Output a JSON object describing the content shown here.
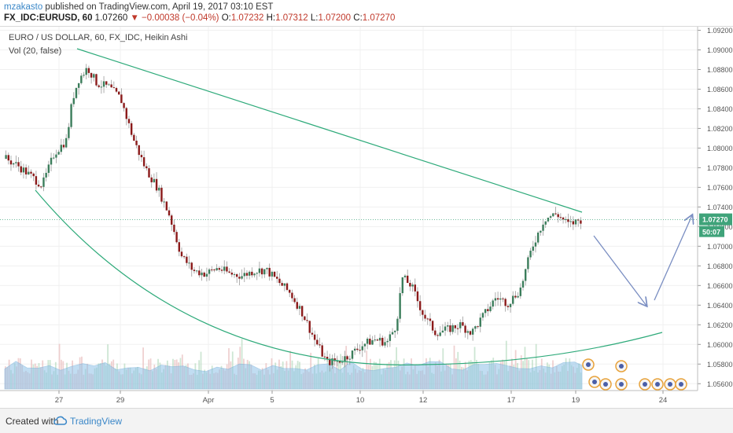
{
  "header": {
    "author": "mzakasto",
    "published_text": "published on TradingView.com, April 19, 2017 03:10 EST",
    "symbol": "FX_IDC:EURUSD, 60",
    "last": "1.07260",
    "change": "▼ −0.00038 (−0.04%)",
    "o_label": "O:",
    "o_value": "1.07232",
    "h_label": "H:",
    "h_value": "1.07312",
    "l_label": "L:",
    "l_value": "1.07200",
    "c_label": "C:",
    "c_value": "1.07270"
  },
  "legend": {
    "title": "EURO / US DOLLAR, 60, FX_IDC, Heikin Ashi",
    "vol": "Vol (20, false)"
  },
  "price_label": {
    "price": "1.07270",
    "countdown": "50:07"
  },
  "footer": {
    "created": "Created with",
    "brand": "TradingView"
  },
  "colors": {
    "up": "#3b7d5b",
    "down": "#8b1a1a",
    "line": "#2eaa7a",
    "arrow": "#7a8ec2",
    "price_label": "#3fa37a",
    "vol_area": "#8fc2e8",
    "vol_bar_up": "#b8dcc0",
    "vol_bar_down": "#e8bcbc"
  },
  "chart_data": {
    "type": "candlestick",
    "style": "Heikin Ashi",
    "timeframe": "60",
    "y_axis_ticks": [
      "1.09200",
      "1.09000",
      "1.08800",
      "1.08600",
      "1.08400",
      "1.08200",
      "1.08000",
      "1.07800",
      "1.07600",
      "1.07400",
      "1.07200",
      "1.07000",
      "1.06800",
      "1.06600",
      "1.06400",
      "1.06200",
      "1.06000",
      "1.05800",
      "1.05600"
    ],
    "x_axis_ticks": [
      "27",
      "29",
      "Apr",
      "5",
      "10",
      "12",
      "17",
      "19",
      "24"
    ],
    "ylim": [
      1.0553,
      1.0922
    ],
    "price_path": [
      {
        "t": 0.0,
        "p": 1.0789
      },
      {
        "t": 0.02,
        "p": 1.0782
      },
      {
        "t": 0.04,
        "p": 1.0772
      },
      {
        "t": 0.06,
        "p": 1.0762
      },
      {
        "t": 0.08,
        "p": 1.0795
      },
      {
        "t": 0.1,
        "p": 1.0808
      },
      {
        "t": 0.11,
        "p": 1.085
      },
      {
        "t": 0.12,
        "p": 1.087
      },
      {
        "t": 0.135,
        "p": 1.0882
      },
      {
        "t": 0.15,
        "p": 1.0866
      },
      {
        "t": 0.17,
        "p": 1.0862
      },
      {
        "t": 0.19,
        "p": 1.085
      },
      {
        "t": 0.21,
        "p": 1.081
      },
      {
        "t": 0.23,
        "p": 1.078
      },
      {
        "t": 0.25,
        "p": 1.076
      },
      {
        "t": 0.27,
        "p": 1.0732
      },
      {
        "t": 0.29,
        "p": 1.069
      },
      {
        "t": 0.31,
        "p": 1.0675
      },
      {
        "t": 0.33,
        "p": 1.0672
      },
      {
        "t": 0.35,
        "p": 1.0678
      },
      {
        "t": 0.37,
        "p": 1.0672
      },
      {
        "t": 0.39,
        "p": 1.067
      },
      {
        "t": 0.41,
        "p": 1.0675
      },
      {
        "t": 0.43,
        "p": 1.0676
      },
      {
        "t": 0.45,
        "p": 1.0664
      },
      {
        "t": 0.47,
        "p": 1.0652
      },
      {
        "t": 0.49,
        "p": 1.0632
      },
      {
        "t": 0.51,
        "p": 1.0605
      },
      {
        "t": 0.53,
        "p": 1.0582
      },
      {
        "t": 0.55,
        "p": 1.0583
      },
      {
        "t": 0.57,
        "p": 1.059
      },
      {
        "t": 0.59,
        "p": 1.06
      },
      {
        "t": 0.61,
        "p": 1.0605
      },
      {
        "t": 0.63,
        "p": 1.0602
      },
      {
        "t": 0.645,
        "p": 1.062
      },
      {
        "t": 0.655,
        "p": 1.0668
      },
      {
        "t": 0.67,
        "p": 1.066
      },
      {
        "t": 0.69,
        "p": 1.063
      },
      {
        "t": 0.71,
        "p": 1.0612
      },
      {
        "t": 0.73,
        "p": 1.0615
      },
      {
        "t": 0.75,
        "p": 1.062
      },
      {
        "t": 0.77,
        "p": 1.0612
      },
      {
        "t": 0.79,
        "p": 1.063
      },
      {
        "t": 0.81,
        "p": 1.0648
      },
      {
        "t": 0.83,
        "p": 1.0642
      },
      {
        "t": 0.85,
        "p": 1.0656
      },
      {
        "t": 0.87,
        "p": 1.07
      },
      {
        "t": 0.89,
        "p": 1.0728
      },
      {
        "t": 0.91,
        "p": 1.0733
      },
      {
        "t": 0.93,
        "p": 1.0722
      },
      {
        "t": 0.95,
        "p": 1.0727
      }
    ]
  }
}
